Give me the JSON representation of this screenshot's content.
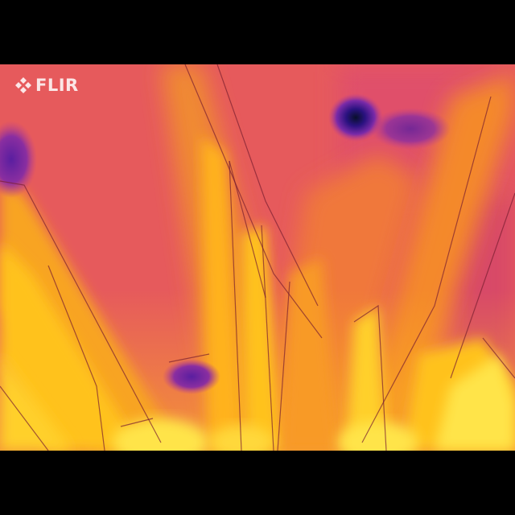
{
  "image": {
    "kind": "thermal-camera-frame",
    "palette": "iron",
    "subject": "grass-blades"
  },
  "logo": {
    "text": "FLIR",
    "icon": "flir-diamond-icon"
  },
  "colors": {
    "background": "#e8555a",
    "warm": "#f4892a",
    "hot": "#ffc21a",
    "hottest": "#ffe44a",
    "cool": "#c0408a",
    "cold": "#5a1ea0",
    "coldest": "#0a0a20",
    "letterbox": "#000000"
  }
}
